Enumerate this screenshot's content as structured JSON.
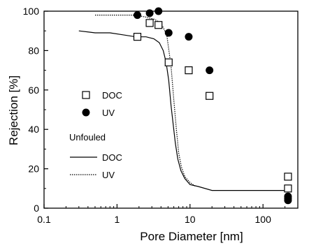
{
  "chart_data": {
    "type": "scatter",
    "xlabel": "Pore Diameter [nm]",
    "ylabel": "Rejection [%]",
    "xscale": "log",
    "xlim": [
      0.1,
      300
    ],
    "ylim": [
      0,
      100
    ],
    "x_ticks": [
      {
        "value": 0.1,
        "label": "0.1"
      },
      {
        "value": 1,
        "label": "1"
      },
      {
        "value": 10,
        "label": "10"
      },
      {
        "value": 100,
        "label": "100"
      }
    ],
    "y_ticks": [
      {
        "value": 0,
        "label": "0"
      },
      {
        "value": 20,
        "label": "20"
      },
      {
        "value": 40,
        "label": "40"
      },
      {
        "value": 60,
        "label": "60"
      },
      {
        "value": 80,
        "label": "80"
      },
      {
        "value": 100,
        "label": "100"
      }
    ],
    "grid": false,
    "legend_position": "left",
    "legend_heading": "Unfouled",
    "series": [
      {
        "name": "DOC",
        "kind": "scatter",
        "marker": "open-square",
        "color": "#000000",
        "x": [
          1.9,
          2.8,
          3.7,
          5.1,
          9.6,
          18.5,
          220,
          220
        ],
        "y": [
          87,
          94,
          93,
          74,
          70,
          57,
          16,
          10
        ]
      },
      {
        "name": "UV",
        "kind": "scatter",
        "marker": "filled-circle",
        "color": "#000000",
        "x": [
          1.9,
          2.8,
          3.7,
          5.1,
          9.6,
          18.5,
          220,
          220,
          220
        ],
        "y": [
          98,
          99,
          100,
          89,
          87,
          70,
          6,
          5,
          4
        ]
      },
      {
        "name": "DOC",
        "kind": "line",
        "line_style": "solid",
        "color": "#000000",
        "x": [
          0.3,
          0.5,
          0.8,
          1.2,
          1.8,
          2.5,
          3.2,
          3.8,
          4.3,
          4.7,
          5.1,
          5.5,
          5.9,
          6.3,
          6.8,
          7.5,
          8.5,
          10,
          13,
          20,
          50,
          100,
          230
        ],
        "y": [
          90,
          89,
          89,
          88,
          87,
          87,
          86,
          84,
          80,
          74,
          65,
          52,
          42,
          33,
          25,
          19,
          15,
          12,
          11,
          9,
          9,
          9,
          9
        ]
      },
      {
        "name": "UV",
        "kind": "line",
        "line_style": "dotted",
        "color": "#000000",
        "x": [
          0.5,
          1.0,
          1.8,
          2.5,
          3.2,
          4.0,
          4.8,
          5.5,
          6.0,
          6.5,
          7.0,
          7.6,
          8.5,
          10,
          12
        ],
        "y": [
          98,
          98,
          98,
          97,
          96,
          94,
          88,
          72,
          55,
          40,
          28,
          21,
          16,
          13,
          11
        ]
      }
    ]
  }
}
